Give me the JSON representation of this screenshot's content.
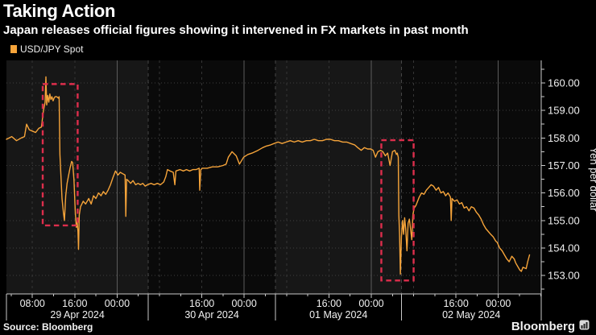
{
  "header": {
    "title": "Taking Action",
    "subtitle": "Japan releases official figures showing it intervened in FX markets in past month"
  },
  "legend": {
    "label": "USD/JPY Spot",
    "swatch_color": "#f6a43a"
  },
  "footer": {
    "source": "Source: Bloomberg",
    "brand": "Bloomberg"
  },
  "colors": {
    "background": "#000000",
    "band_light": "#171717",
    "band_dark": "#0a0a0a",
    "grid_dotted": "#3f3f3f",
    "grid_dashed": "#353535",
    "grid_solid": "#5c5c5c",
    "day_boundary": "#454545",
    "axis": "#c9c9c9",
    "tick_text": "#f1f1f1",
    "line": "#f6a43a",
    "annotation": "#dd2e4c"
  },
  "chart_data": {
    "type": "line",
    "title": "Taking Action",
    "subtitle": "Japan releases official figures showing it intervened in FX markets in past month",
    "series_name": "USD/JPY Spot",
    "ylabel": "Yen per dollar",
    "x_unit": "hours since 29 Apr 2024 00:00",
    "xlim": [
      3.1,
      104.1
    ],
    "ylim": [
      152.33,
      160.82
    ],
    "ytick_values": [
      153,
      154,
      155,
      156,
      157,
      158,
      159,
      160
    ],
    "ytick_minor_step": 0.5,
    "xticks_major": [
      {
        "t": 8,
        "label": "08:00"
      },
      {
        "t": 16,
        "label": "16:00"
      },
      {
        "t": 24,
        "label": "00:00"
      },
      {
        "t": 40,
        "label": "16:00"
      },
      {
        "t": 48,
        "label": "00:00"
      },
      {
        "t": 64,
        "label": "16:00"
      },
      {
        "t": 72,
        "label": "00:00"
      },
      {
        "t": 88,
        "label": "16:00"
      },
      {
        "t": 96,
        "label": "00:00"
      }
    ],
    "xtick_minor_step": 4,
    "solid_vlines": [
      24,
      48,
      72,
      96
    ],
    "dashed_vlines": [
      8,
      16,
      32,
      40,
      56,
      64,
      80,
      88
    ],
    "day_sections": [
      {
        "label": "29 Apr 2024",
        "t0": 3.1,
        "t1": 29.9,
        "shade": "light"
      },
      {
        "label": "30 Apr 2024",
        "t0": 29.9,
        "t1": 53.9,
        "shade": "dark"
      },
      {
        "label": "01 May 2024",
        "t0": 53.9,
        "t1": 77.7,
        "shade": "light"
      },
      {
        "label": "02 May 2024",
        "t0": 77.7,
        "t1": 104.1,
        "shade": "dark"
      }
    ],
    "annotation_boxes": [
      {
        "t0": 9.95,
        "t1": 16.55,
        "v0": 154.82,
        "v1": 159.96
      },
      {
        "t0": 73.9,
        "t1": 80.0,
        "v0": 152.82,
        "v1": 157.92
      }
    ],
    "points": [
      [
        3.1,
        157.95
      ],
      [
        4.1,
        158.05
      ],
      [
        5.0,
        157.9
      ],
      [
        5.9,
        158.0
      ],
      [
        6.5,
        158.05
      ],
      [
        6.9,
        158.5
      ],
      [
        7.4,
        158.3
      ],
      [
        8.0,
        158.25
      ],
      [
        8.6,
        158.2
      ],
      [
        9.2,
        158.35
      ],
      [
        9.7,
        158.4
      ],
      [
        10.1,
        159.0
      ],
      [
        10.4,
        159.3
      ],
      [
        10.55,
        160.22
      ],
      [
        10.7,
        159.2
      ],
      [
        10.9,
        159.55
      ],
      [
        11.1,
        159.3
      ],
      [
        11.3,
        159.6
      ],
      [
        11.5,
        159.4
      ],
      [
        11.7,
        159.5
      ],
      [
        11.9,
        159.35
      ],
      [
        12.1,
        159.45
      ],
      [
        12.3,
        159.5
      ],
      [
        12.6,
        159.5
      ],
      [
        12.9,
        159.45
      ],
      [
        13.05,
        159.5
      ],
      [
        13.2,
        157.4
      ],
      [
        13.4,
        156.6
      ],
      [
        13.6,
        155.8
      ],
      [
        13.85,
        155.3
      ],
      [
        14.05,
        155.0
      ],
      [
        14.3,
        155.9
      ],
      [
        14.55,
        156.35
      ],
      [
        14.8,
        156.6
      ],
      [
        15.1,
        156.9
      ],
      [
        15.4,
        157.15
      ],
      [
        15.6,
        157.1
      ],
      [
        15.85,
        156.5
      ],
      [
        16.1,
        155.3
      ],
      [
        16.3,
        154.75
      ],
      [
        16.45,
        154.95
      ],
      [
        16.6,
        154.6
      ],
      [
        16.72,
        153.95
      ],
      [
        16.85,
        155.2
      ],
      [
        17.1,
        155.5
      ],
      [
        17.6,
        155.7
      ],
      [
        18.05,
        155.6
      ],
      [
        18.65,
        155.8
      ],
      [
        19.1,
        155.6
      ],
      [
        19.55,
        155.9
      ],
      [
        20.0,
        155.8
      ],
      [
        20.5,
        156.0
      ],
      [
        20.95,
        155.9
      ],
      [
        21.4,
        156.05
      ],
      [
        21.85,
        155.95
      ],
      [
        22.3,
        156.1
      ],
      [
        22.75,
        156.3
      ],
      [
        23.2,
        156.55
      ],
      [
        23.7,
        156.8
      ],
      [
        24.15,
        156.65
      ],
      [
        24.6,
        156.75
      ],
      [
        25.05,
        156.7
      ],
      [
        25.5,
        156.65
      ],
      [
        25.65,
        155.15
      ],
      [
        25.8,
        156.5
      ],
      [
        26.1,
        156.45
      ],
      [
        26.55,
        156.35
      ],
      [
        27.0,
        156.45
      ],
      [
        27.5,
        156.3
      ],
      [
        27.95,
        156.35
      ],
      [
        28.4,
        156.3
      ],
      [
        28.85,
        156.35
      ],
      [
        29.3,
        156.25
      ],
      [
        29.75,
        156.3
      ],
      [
        30.4,
        156.35
      ],
      [
        31.0,
        156.3
      ],
      [
        31.6,
        156.35
      ],
      [
        32.2,
        156.3
      ],
      [
        32.8,
        156.4
      ],
      [
        33.2,
        156.6
      ],
      [
        33.5,
        156.85
      ],
      [
        34.0,
        156.8
      ],
      [
        34.6,
        156.75
      ],
      [
        34.9,
        156.3
      ],
      [
        35.1,
        156.8
      ],
      [
        35.9,
        156.85
      ],
      [
        36.5,
        156.8
      ],
      [
        37.1,
        156.85
      ],
      [
        37.7,
        156.8
      ],
      [
        38.3,
        156.85
      ],
      [
        38.9,
        156.85
      ],
      [
        39.5,
        156.9
      ],
      [
        39.6,
        156.1
      ],
      [
        39.8,
        156.85
      ],
      [
        40.1,
        156.9
      ],
      [
        41.0,
        156.9
      ],
      [
        42.0,
        156.95
      ],
      [
        43.0,
        156.95
      ],
      [
        44.0,
        157.0
      ],
      [
        44.6,
        157.05
      ],
      [
        45.0,
        157.3
      ],
      [
        45.7,
        157.5
      ],
      [
        46.5,
        157.35
      ],
      [
        47.1,
        157.05
      ],
      [
        47.9,
        157.3
      ],
      [
        48.7,
        157.4
      ],
      [
        49.5,
        157.45
      ],
      [
        50.6,
        157.55
      ],
      [
        51.5,
        157.65
      ],
      [
        52.1,
        157.7
      ],
      [
        53.0,
        157.75
      ],
      [
        53.65,
        157.8
      ],
      [
        54.4,
        157.85
      ],
      [
        55.15,
        157.8
      ],
      [
        55.95,
        157.85
      ],
      [
        56.7,
        157.9
      ],
      [
        57.45,
        157.85
      ],
      [
        58.2,
        157.9
      ],
      [
        58.95,
        157.85
      ],
      [
        59.75,
        157.9
      ],
      [
        60.5,
        157.9
      ],
      [
        61.25,
        157.95
      ],
      [
        62.0,
        157.9
      ],
      [
        62.75,
        157.9
      ],
      [
        63.55,
        157.95
      ],
      [
        64.3,
        157.95
      ],
      [
        65.05,
        157.9
      ],
      [
        65.8,
        157.9
      ],
      [
        66.6,
        157.85
      ],
      [
        67.35,
        157.85
      ],
      [
        68.1,
        157.8
      ],
      [
        68.85,
        157.75
      ],
      [
        69.45,
        157.65
      ],
      [
        70.1,
        157.55
      ],
      [
        70.7,
        157.65
      ],
      [
        71.3,
        157.6
      ],
      [
        71.9,
        157.6
      ],
      [
        72.35,
        157.55
      ],
      [
        72.8,
        157.3
      ],
      [
        73.25,
        157.5
      ],
      [
        73.75,
        157.55
      ],
      [
        74.2,
        157.5
      ],
      [
        74.65,
        157.35
      ],
      [
        75.1,
        157.45
      ],
      [
        75.55,
        157.0
      ],
      [
        76.0,
        157.5
      ],
      [
        76.45,
        157.55
      ],
      [
        76.75,
        157.4
      ],
      [
        76.9,
        157.45
      ],
      [
        77.1,
        157.3
      ],
      [
        77.2,
        155.2
      ],
      [
        77.35,
        154.5
      ],
      [
        77.5,
        153.05
      ],
      [
        77.7,
        154.4
      ],
      [
        77.9,
        155.0
      ],
      [
        78.1,
        154.5
      ],
      [
        78.3,
        155.1
      ],
      [
        78.5,
        154.7
      ],
      [
        78.75,
        153.9
      ],
      [
        78.95,
        154.9
      ],
      [
        79.2,
        155.05
      ],
      [
        79.5,
        154.55
      ],
      [
        79.65,
        154.3
      ],
      [
        79.85,
        155.2
      ],
      [
        80.1,
        155.45
      ],
      [
        80.45,
        155.55
      ],
      [
        80.75,
        155.7
      ],
      [
        81.05,
        155.85
      ],
      [
        81.5,
        156.0
      ],
      [
        81.95,
        155.95
      ],
      [
        82.4,
        156.1
      ],
      [
        82.85,
        156.2
      ],
      [
        83.3,
        156.3
      ],
      [
        83.75,
        156.25
      ],
      [
        84.25,
        156.1
      ],
      [
        84.7,
        156.2
      ],
      [
        85.15,
        156.0
      ],
      [
        85.6,
        156.05
      ],
      [
        86.05,
        155.9
      ],
      [
        86.5,
        156.0
      ],
      [
        86.95,
        155.85
      ],
      [
        87.1,
        155.0
      ],
      [
        87.25,
        155.8
      ],
      [
        87.7,
        155.7
      ],
      [
        88.2,
        155.75
      ],
      [
        88.65,
        155.6
      ],
      [
        89.1,
        155.65
      ],
      [
        89.55,
        155.45
      ],
      [
        90.0,
        155.5
      ],
      [
        90.45,
        155.35
      ],
      [
        90.9,
        155.5
      ],
      [
        91.4,
        155.45
      ],
      [
        91.85,
        155.3
      ],
      [
        92.3,
        155.2
      ],
      [
        92.75,
        155.05
      ],
      [
        93.2,
        154.85
      ],
      [
        93.65,
        154.7
      ],
      [
        94.1,
        154.6
      ],
      [
        94.55,
        154.5
      ],
      [
        95.05,
        154.4
      ],
      [
        95.5,
        154.25
      ],
      [
        95.8,
        154.2
      ],
      [
        96.25,
        154.0
      ],
      [
        96.7,
        153.9
      ],
      [
        97.15,
        153.75
      ],
      [
        97.6,
        153.6
      ],
      [
        98.05,
        153.5
      ],
      [
        98.55,
        153.7
      ],
      [
        99.0,
        153.6
      ],
      [
        99.3,
        153.45
      ],
      [
        99.75,
        153.3
      ],
      [
        100.05,
        153.2
      ],
      [
        100.35,
        153.15
      ],
      [
        100.65,
        153.3
      ],
      [
        101.25,
        153.25
      ],
      [
        101.55,
        153.5
      ],
      [
        101.9,
        153.75
      ]
    ]
  }
}
